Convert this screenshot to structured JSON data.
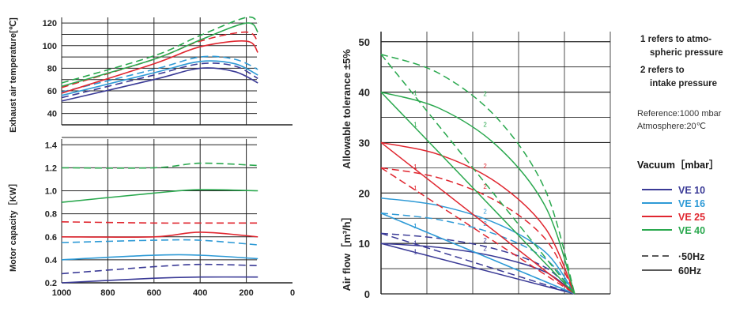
{
  "colors": {
    "VE 10": "#3a3a96",
    "VE 16": "#2e9ad6",
    "VE 25": "#e0262f",
    "VE 40": "#2aa84e",
    "grid": "#222222"
  },
  "legend": {
    "title": "Vacuum［mbar］",
    "series": [
      "VE 10",
      "VE 16",
      "VE 25",
      "VE 40"
    ],
    "line_50": "50Hz",
    "line_60": "60Hz"
  },
  "notes": {
    "n1_line1": "1 refers to atmo-",
    "n1_line2": "spheric pressure",
    "n2_line1": "2  refers to",
    "n2_line2": "intake  pressure",
    "ref1": "Reference:1000 mbar",
    "ref2": "Atmosphere:20℃"
  },
  "chart_data": [
    {
      "type": "line",
      "ylabel": "Exhaust air temperature[℃]",
      "xlim": [
        0,
        1000
      ],
      "x_reversed": true,
      "ylim": [
        30,
        125
      ],
      "yticks": [
        40,
        60,
        80,
        100,
        120
      ],
      "series": [
        {
          "name": "VE 10",
          "hz": "60Hz",
          "x": [
            1000,
            600,
            400,
            250,
            150
          ],
          "y": [
            51,
            70,
            80,
            77,
            67
          ]
        },
        {
          "name": "VE 10",
          "hz": "50Hz",
          "x": [
            1000,
            600,
            400,
            250,
            150
          ],
          "y": [
            54,
            74,
            84,
            82,
            71
          ]
        },
        {
          "name": "VE 16",
          "hz": "60Hz",
          "x": [
            1000,
            600,
            400,
            250,
            150
          ],
          "y": [
            56,
            76,
            86,
            84,
            74
          ]
        },
        {
          "name": "VE 16",
          "hz": "50Hz",
          "x": [
            1000,
            600,
            400,
            250,
            150
          ],
          "y": [
            59,
            79,
            90,
            88,
            79
          ]
        },
        {
          "name": "VE 25",
          "hz": "60Hz",
          "x": [
            1000,
            600,
            400,
            200,
            150
          ],
          "y": [
            58,
            84,
            99,
            104,
            94
          ]
        },
        {
          "name": "VE 25",
          "hz": "50Hz",
          "x": [
            1000,
            600,
            400,
            200,
            150
          ],
          "y": [
            63,
            88,
            104,
            112,
            103
          ]
        },
        {
          "name": "VE 40",
          "hz": "60Hz",
          "x": [
            1000,
            600,
            400,
            200,
            150
          ],
          "y": [
            64,
            88,
            105,
            120,
            112
          ]
        },
        {
          "name": "VE 40",
          "hz": "50Hz",
          "x": [
            1000,
            600,
            400,
            200,
            150
          ],
          "y": [
            67,
            91,
            109,
            125,
            120
          ]
        }
      ]
    },
    {
      "type": "line",
      "ylabel": "Motor capacity［KW］",
      "xlim": [
        0,
        1000
      ],
      "x_reversed": true,
      "xticks": [
        1000,
        800,
        600,
        400,
        200,
        0
      ],
      "ylim": [
        0.2,
        1.45
      ],
      "yticks": [
        0.2,
        0.4,
        0.6,
        0.8,
        1.0,
        1.2,
        1.4
      ],
      "series": [
        {
          "name": "VE 10",
          "hz": "60Hz",
          "x": [
            1000,
            600,
            400,
            150
          ],
          "y": [
            0.2,
            0.24,
            0.25,
            0.25
          ]
        },
        {
          "name": "VE 10",
          "hz": "50Hz",
          "x": [
            1000,
            600,
            400,
            150
          ],
          "y": [
            0.28,
            0.34,
            0.36,
            0.35
          ]
        },
        {
          "name": "VE 16",
          "hz": "60Hz",
          "x": [
            1000,
            600,
            400,
            150
          ],
          "y": [
            0.4,
            0.44,
            0.44,
            0.41
          ]
        },
        {
          "name": "VE 16",
          "hz": "50Hz",
          "x": [
            1000,
            600,
            400,
            150
          ],
          "y": [
            0.55,
            0.57,
            0.57,
            0.53
          ]
        },
        {
          "name": "VE 25",
          "hz": "60Hz",
          "x": [
            1000,
            600,
            400,
            150
          ],
          "y": [
            0.6,
            0.6,
            0.64,
            0.6
          ]
        },
        {
          "name": "VE 25",
          "hz": "50Hz",
          "x": [
            1000,
            600,
            400,
            150
          ],
          "y": [
            0.73,
            0.72,
            0.72,
            0.72
          ]
        },
        {
          "name": "VE 40",
          "hz": "60Hz",
          "x": [
            1000,
            600,
            400,
            150
          ],
          "y": [
            0.9,
            0.98,
            1.01,
            1.0
          ]
        },
        {
          "name": "VE 40",
          "hz": "50Hz",
          "x": [
            1000,
            600,
            400,
            150
          ],
          "y": [
            1.2,
            1.2,
            1.24,
            1.22
          ]
        }
      ]
    },
    {
      "type": "line",
      "ylabel": "Allowable  tolerance ±5%",
      "ylabel2": "Air flow［m³/h］",
      "xlim": [
        0,
        1000
      ],
      "ylim": [
        0,
        52
      ],
      "yticks": [
        0,
        10,
        20,
        30,
        40,
        50
      ],
      "annotations": [
        "1",
        "2"
      ],
      "series": [
        {
          "name": "VE 10",
          "hz": "60Hz",
          "ref": "1",
          "x": [
            0,
            1000
          ],
          "y": [
            10,
            0
          ]
        },
        {
          "name": "VE 10",
          "hz": "60Hz",
          "ref": "2",
          "x": [
            0,
            300,
            600,
            850,
            1000
          ],
          "y": [
            10,
            9.2,
            7.3,
            4.3,
            0
          ]
        },
        {
          "name": "VE 10",
          "hz": "50Hz",
          "ref": "1",
          "x": [
            0,
            1000
          ],
          "y": [
            12,
            0
          ]
        },
        {
          "name": "VE 10",
          "hz": "50Hz",
          "ref": "2",
          "x": [
            0,
            300,
            600,
            850,
            1000
          ],
          "y": [
            12,
            11,
            8.8,
            5.2,
            0
          ]
        },
        {
          "name": "VE 16",
          "hz": "60Hz",
          "ref": "1",
          "x": [
            0,
            1000
          ],
          "y": [
            16,
            0
          ]
        },
        {
          "name": "VE 16",
          "hz": "60Hz",
          "ref": "2",
          "x": [
            0,
            300,
            600,
            850,
            1000
          ],
          "y": [
            19,
            17.5,
            13.9,
            8.2,
            0
          ]
        },
        {
          "name": "VE 16",
          "hz": "50Hz",
          "ref": "1",
          "x": [
            0,
            1000
          ],
          "y": [
            16,
            0
          ]
        },
        {
          "name": "VE 16",
          "hz": "50Hz",
          "ref": "2",
          "x": [
            0,
            300,
            600,
            850,
            1000
          ],
          "y": [
            16,
            14.7,
            11.7,
            6.9,
            0
          ]
        },
        {
          "name": "VE 25",
          "hz": "60Hz",
          "ref": "1",
          "x": [
            0,
            1000
          ],
          "y": [
            30,
            0
          ]
        },
        {
          "name": "VE 25",
          "hz": "60Hz",
          "ref": "2",
          "x": [
            0,
            300,
            600,
            850,
            1000
          ],
          "y": [
            30,
            27.6,
            22,
            12.9,
            0
          ]
        },
        {
          "name": "VE 25",
          "hz": "50Hz",
          "ref": "1",
          "x": [
            0,
            1000
          ],
          "y": [
            25,
            0
          ]
        },
        {
          "name": "VE 25",
          "hz": "50Hz",
          "ref": "2",
          "x": [
            0,
            300,
            600,
            850,
            1000
          ],
          "y": [
            25,
            23,
            18.3,
            10.8,
            0
          ]
        },
        {
          "name": "VE 40",
          "hz": "60Hz",
          "ref": "1",
          "x": [
            0,
            1000
          ],
          "y": [
            40,
            0
          ]
        },
        {
          "name": "VE 40",
          "hz": "60Hz",
          "ref": "2",
          "x": [
            0,
            300,
            600,
            850,
            1000
          ],
          "y": [
            40,
            36.8,
            29.3,
            17.2,
            0
          ]
        },
        {
          "name": "VE 40",
          "hz": "50Hz",
          "ref": "1",
          "x": [
            0,
            1000
          ],
          "y": [
            47.5,
            0
          ]
        },
        {
          "name": "VE 40",
          "hz": "50Hz",
          "ref": "2",
          "x": [
            0,
            300,
            600,
            850,
            1000
          ],
          "y": [
            47.5,
            43.7,
            34.8,
            20.4,
            0
          ]
        }
      ]
    }
  ]
}
